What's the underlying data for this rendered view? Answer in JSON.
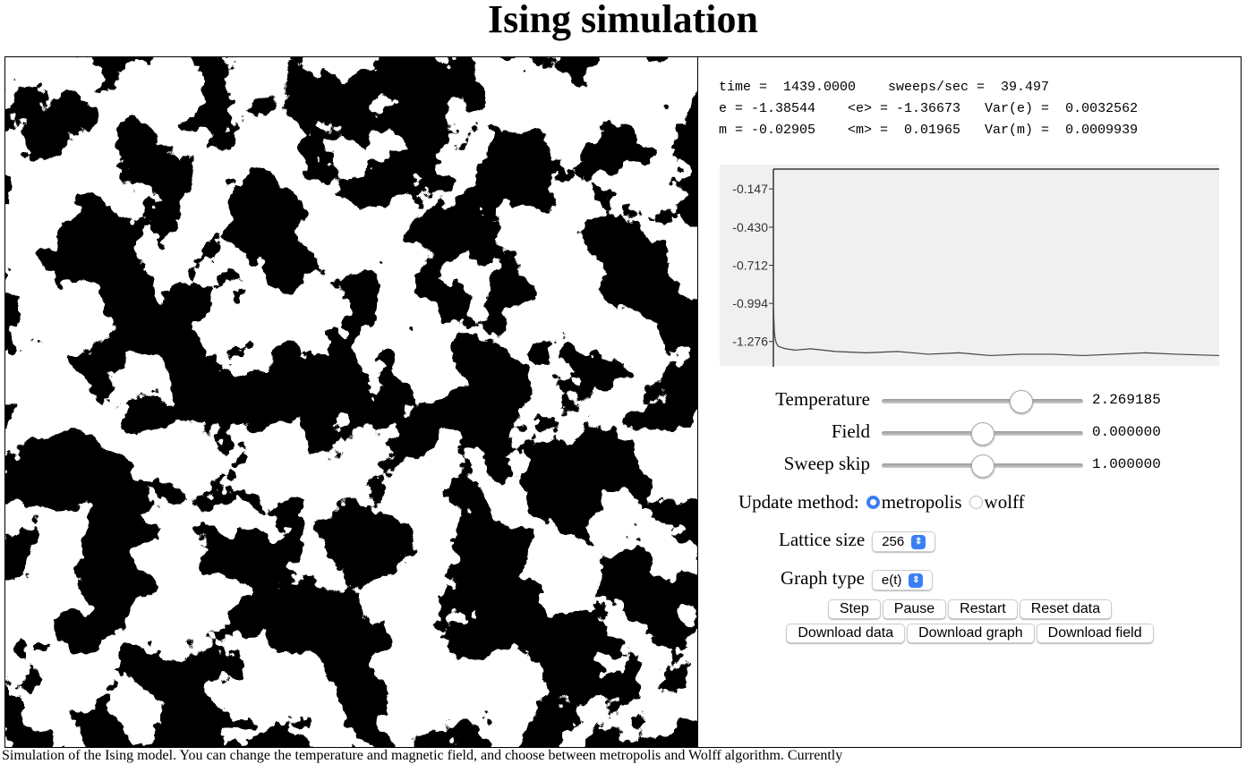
{
  "title": "Ising simulation",
  "stats": [
    "time =  1439.0000    sweeps/sec =  39.497",
    "e = -1.38544    <e> = -1.36673   Var(e) =  0.0032562",
    "m = -0.02905    <m> =  0.01965   Var(m) =  0.0009939"
  ],
  "chart_data": {
    "type": "line",
    "x": [
      0,
      3,
      6,
      10,
      15,
      25,
      40,
      70,
      120,
      200,
      300,
      400,
      500,
      600,
      700,
      800,
      900,
      1000,
      1100,
      1200,
      1300,
      1439
    ],
    "values": [
      -1.0,
      -1.2,
      -1.26,
      -1.29,
      -1.31,
      -1.32,
      -1.33,
      -1.34,
      -1.33,
      -1.35,
      -1.36,
      -1.35,
      -1.37,
      -1.36,
      -1.38,
      -1.37,
      -1.37,
      -1.38,
      -1.37,
      -1.36,
      -1.37,
      -1.38
    ],
    "color": "#444444",
    "xlim": [
      0,
      1439
    ],
    "ylim": [
      -1.45,
      0
    ],
    "yticks": [
      -0.147,
      {
        "value": -0.43,
        "label": "-0.430"
      },
      -0.712,
      -0.994,
      -1.276
    ]
  },
  "sliders": [
    {
      "label": "Temperature",
      "value": "2.269185"
    },
    {
      "label": "Field",
      "value": "0.000000"
    },
    {
      "label": "Sweep skip",
      "value": "1.000000"
    }
  ],
  "update_method": {
    "label": "Update method:",
    "options": [
      "metropolis",
      "wolff"
    ]
  },
  "lattice_size": {
    "label": "Lattice size",
    "value": "256"
  },
  "graph_type": {
    "label": "Graph type",
    "value": "e(t)"
  },
  "buttons": [
    [
      "Step",
      "Pause",
      "Restart",
      "Reset data"
    ],
    [
      "Download data",
      "Download graph",
      "Download field"
    ]
  ],
  "footer": "Simulation of the Ising model. You can change the temperature and magnetic field, and choose between metropolis and Wolff algorithm. Currently"
}
